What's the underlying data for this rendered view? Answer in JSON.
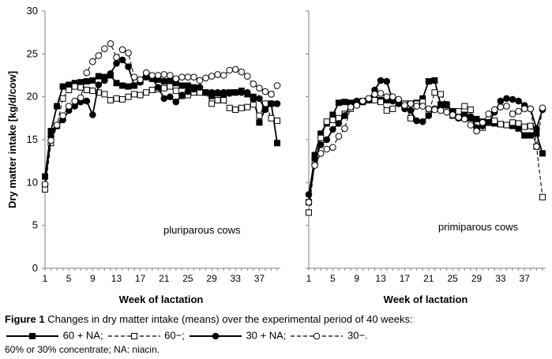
{
  "chart_data": [
    {
      "type": "line",
      "annotation": "pluriparous cows",
      "ylabel": "Dry matter intake [kg/d/cow]",
      "xlabel": "Week of lactation",
      "xlim": [
        1,
        40
      ],
      "ylim": [
        0,
        30
      ],
      "yticks": [
        0,
        5,
        10,
        15,
        20,
        25,
        30
      ],
      "xticks": [
        1,
        5,
        9,
        13,
        17,
        21,
        25,
        29,
        33,
        37
      ],
      "series": [
        {
          "name": "60 + NA",
          "x": [
            1,
            2,
            3,
            4,
            5,
            6,
            7,
            8,
            9,
            10,
            11,
            12,
            13,
            14,
            15,
            16,
            17,
            18,
            19,
            20,
            21,
            22,
            23,
            24,
            25,
            26,
            27,
            28,
            29,
            30,
            31,
            32,
            33,
            34,
            35,
            36,
            37,
            38,
            39,
            40
          ],
          "values": [
            10.7,
            16.0,
            18.9,
            21.2,
            21.4,
            21.6,
            21.7,
            21.8,
            21.9,
            22.4,
            22.3,
            22.5,
            21.6,
            21.3,
            21.2,
            21.3,
            21.8,
            22.3,
            22.1,
            22.0,
            21.8,
            21.8,
            21.6,
            21.3,
            21.3,
            21.1,
            20.9,
            20.5,
            20.1,
            20.4,
            20.3,
            20.5,
            20.5,
            20.7,
            20.3,
            20.0,
            17.0,
            18.6,
            19.2,
            14.6
          ]
        },
        {
          "name": "60−",
          "x": [
            1,
            2,
            3,
            4,
            5,
            6,
            7,
            8,
            9,
            10,
            11,
            12,
            13,
            14,
            15,
            16,
            17,
            18,
            19,
            20,
            21,
            22,
            23,
            24,
            25,
            26,
            27,
            28,
            29,
            30,
            31,
            32,
            33,
            34,
            35,
            36,
            37,
            38,
            39,
            40
          ],
          "values": [
            9.2,
            14.6,
            16.6,
            19.8,
            20.8,
            21.2,
            21.1,
            20.8,
            20.7,
            20.5,
            20.3,
            19.6,
            19.8,
            19.7,
            20.0,
            20.3,
            20.2,
            20.5,
            20.8,
            20.9,
            21.0,
            21.2,
            20.7,
            20.1,
            20.2,
            20.5,
            20.5,
            20.5,
            19.2,
            19.6,
            19.6,
            18.7,
            18.5,
            18.7,
            18.8,
            19.1,
            17.8,
            19.2,
            17.5,
            17.2
          ]
        },
        {
          "name": "30 + NA",
          "x": [
            1,
            2,
            3,
            4,
            5,
            6,
            7,
            8,
            9,
            10,
            11,
            12,
            13,
            14,
            15,
            16,
            17,
            18,
            19,
            20,
            21,
            22,
            23,
            24,
            25,
            26,
            27,
            28,
            29,
            30,
            31,
            32,
            33,
            34,
            35,
            36,
            37,
            38,
            39,
            40
          ],
          "values": [
            9.8,
            15.4,
            16.6,
            17.3,
            18.4,
            18.9,
            19.4,
            19.5,
            17.9,
            21.4,
            21.9,
            22.7,
            23.9,
            24.3,
            23.5,
            21.3,
            21.7,
            22.3,
            22.1,
            21.1,
            19.8,
            20.0,
            19.4,
            20.2,
            20.6,
            20.9,
            21.1,
            20.5,
            20.5,
            20.5,
            20.5,
            20.4,
            20.5,
            20.5,
            20.5,
            19.7,
            19.8,
            18.5,
            19.2,
            19.2
          ]
        },
        {
          "name": "30−",
          "x": [
            1,
            2,
            3,
            4,
            5,
            6,
            7,
            8,
            9,
            10,
            11,
            12,
            13,
            14,
            15,
            16,
            17,
            18,
            19,
            20,
            21,
            22,
            23,
            24,
            25,
            26,
            27,
            28,
            29,
            30,
            31,
            32,
            33,
            34,
            35,
            36,
            37,
            38,
            39,
            40
          ],
          "values": [
            9.8,
            14.9,
            16.7,
            17.8,
            18.9,
            19.5,
            19.9,
            22.8,
            24.1,
            24.8,
            25.6,
            26.2,
            24.6,
            25.5,
            25.1,
            22.3,
            22.0,
            22.8,
            22.5,
            22.5,
            22.6,
            22.5,
            22.1,
            22.3,
            22.3,
            22.3,
            21.9,
            22.2,
            22.4,
            22.6,
            22.5,
            23.1,
            23.2,
            22.9,
            22.4,
            21.5,
            21.0,
            20.6,
            20.3,
            21.3
          ]
        }
      ]
    },
    {
      "type": "line",
      "annotation": "primiparous cows",
      "ylabel": "",
      "xlabel": "Week of lactation",
      "xlim": [
        1,
        40
      ],
      "ylim": [
        0,
        30
      ],
      "yticks": [
        0,
        5,
        10,
        15,
        20,
        25,
        30
      ],
      "xticks": [
        1,
        5,
        9,
        13,
        17,
        21,
        25,
        29,
        33,
        37
      ],
      "series": [
        {
          "name": "60 + NA",
          "x": [
            1,
            2,
            3,
            4,
            5,
            6,
            7,
            8,
            9,
            10,
            11,
            12,
            13,
            14,
            15,
            16,
            17,
            18,
            19,
            20,
            21,
            22,
            23,
            24,
            25,
            26,
            27,
            28,
            29,
            30,
            31,
            32,
            33,
            34,
            35,
            36,
            37,
            38,
            39,
            40
          ],
          "values": [
            7.7,
            13.2,
            15.7,
            16.9,
            17.9,
            19.3,
            19.4,
            19.3,
            19.3,
            19.5,
            19.6,
            19.7,
            19.6,
            19.6,
            19.6,
            19.5,
            19.2,
            19.2,
            19.3,
            19.8,
            21.8,
            21.9,
            19.1,
            19.0,
            18.3,
            17.6,
            17.9,
            17.5,
            17.4,
            17.1,
            17.0,
            16.9,
            16.8,
            16.7,
            16.6,
            16.3,
            15.5,
            15.5,
            15.7,
            13.4
          ]
        },
        {
          "name": "60−",
          "x": [
            1,
            2,
            3,
            4,
            5,
            6,
            7,
            8,
            9,
            10,
            11,
            12,
            13,
            14,
            15,
            16,
            17,
            18,
            19,
            20,
            21,
            22,
            23,
            24,
            25,
            26,
            27,
            28,
            29,
            30,
            31,
            32,
            33,
            34,
            35,
            36,
            37,
            38,
            39,
            40
          ],
          "values": [
            6.5,
            12.4,
            15.2,
            17.1,
            17.3,
            17.5,
            18.0,
            18.6,
            19.1,
            19.4,
            19.6,
            19.6,
            19.4,
            18.4,
            18.6,
            19.4,
            19.2,
            17.5,
            19.2,
            19.4,
            18.0,
            20.5,
            20.3,
            19.1,
            17.8,
            18.3,
            18.9,
            18.5,
            16.2,
            16.4,
            17.0,
            17.2,
            16.8,
            16.7,
            17.0,
            16.9,
            16.5,
            16.6,
            14.2,
            8.3
          ]
        },
        {
          "name": "30 + NA",
          "x": [
            1,
            2,
            3,
            4,
            5,
            6,
            7,
            8,
            9,
            10,
            11,
            12,
            13,
            14,
            15,
            16,
            17,
            18,
            19,
            20,
            21,
            22,
            23,
            24,
            25,
            26,
            27,
            28,
            29,
            30,
            31,
            32,
            33,
            34,
            35,
            36,
            37,
            38,
            39,
            40
          ],
          "values": [
            8.6,
            12.8,
            14.4,
            15.0,
            16.2,
            16.9,
            17.8,
            19.1,
            19.5,
            19.4,
            19.6,
            20.8,
            21.9,
            21.8,
            19.5,
            19.2,
            18.6,
            18.4,
            17.2,
            17.1,
            17.8,
            18.6,
            18.9,
            19.1,
            18.3,
            17.5,
            17.6,
            17.7,
            16.4,
            16.6,
            17.0,
            18.2,
            19.5,
            19.8,
            19.7,
            19.5,
            19.0,
            18.6,
            16.3,
            18.5
          ]
        },
        {
          "name": "30−",
          "x": [
            1,
            2,
            3,
            4,
            5,
            6,
            7,
            8,
            9,
            10,
            11,
            12,
            13,
            14,
            15,
            16,
            17,
            18,
            19,
            20,
            21,
            22,
            23,
            24,
            25,
            26,
            27,
            28,
            29,
            30,
            31,
            32,
            33,
            34,
            35,
            36,
            37,
            38,
            39,
            40
          ],
          "values": [
            7.7,
            12.0,
            13.4,
            13.9,
            14.1,
            15.4,
            16.3,
            18.8,
            19.0,
            19.5,
            19.8,
            20.3,
            20.4,
            20.0,
            20.0,
            19.7,
            19.0,
            19.2,
            18.9,
            18.9,
            18.6,
            18.5,
            18.4,
            18.2,
            17.9,
            17.6,
            17.4,
            16.7,
            16.0,
            17.0,
            18.0,
            18.5,
            18.8,
            18.9,
            18.0,
            18.3,
            18.6,
            18.6,
            14.2,
            18.7
          ]
        }
      ]
    }
  ],
  "caption": {
    "label": "Figure 1",
    "text": " Changes in dry matter intake (means) over the experimental period of 40 weeks:"
  },
  "legend": [
    {
      "label": "60 + NA;",
      "marker": "square",
      "filled": true,
      "dashed": false
    },
    {
      "label": "60−;",
      "marker": "square",
      "filled": false,
      "dashed": true
    },
    {
      "label": "30 + NA;",
      "marker": "circle",
      "filled": true,
      "dashed": false
    },
    {
      "label": "30−.",
      "marker": "circle",
      "filled": false,
      "dashed": true
    }
  ],
  "footnote": "60% or 30% concentrate; NA: niacin.",
  "colors": {
    "ink": "#000000",
    "fill_open": "#ffffff",
    "axis": "#7f7f7f"
  }
}
